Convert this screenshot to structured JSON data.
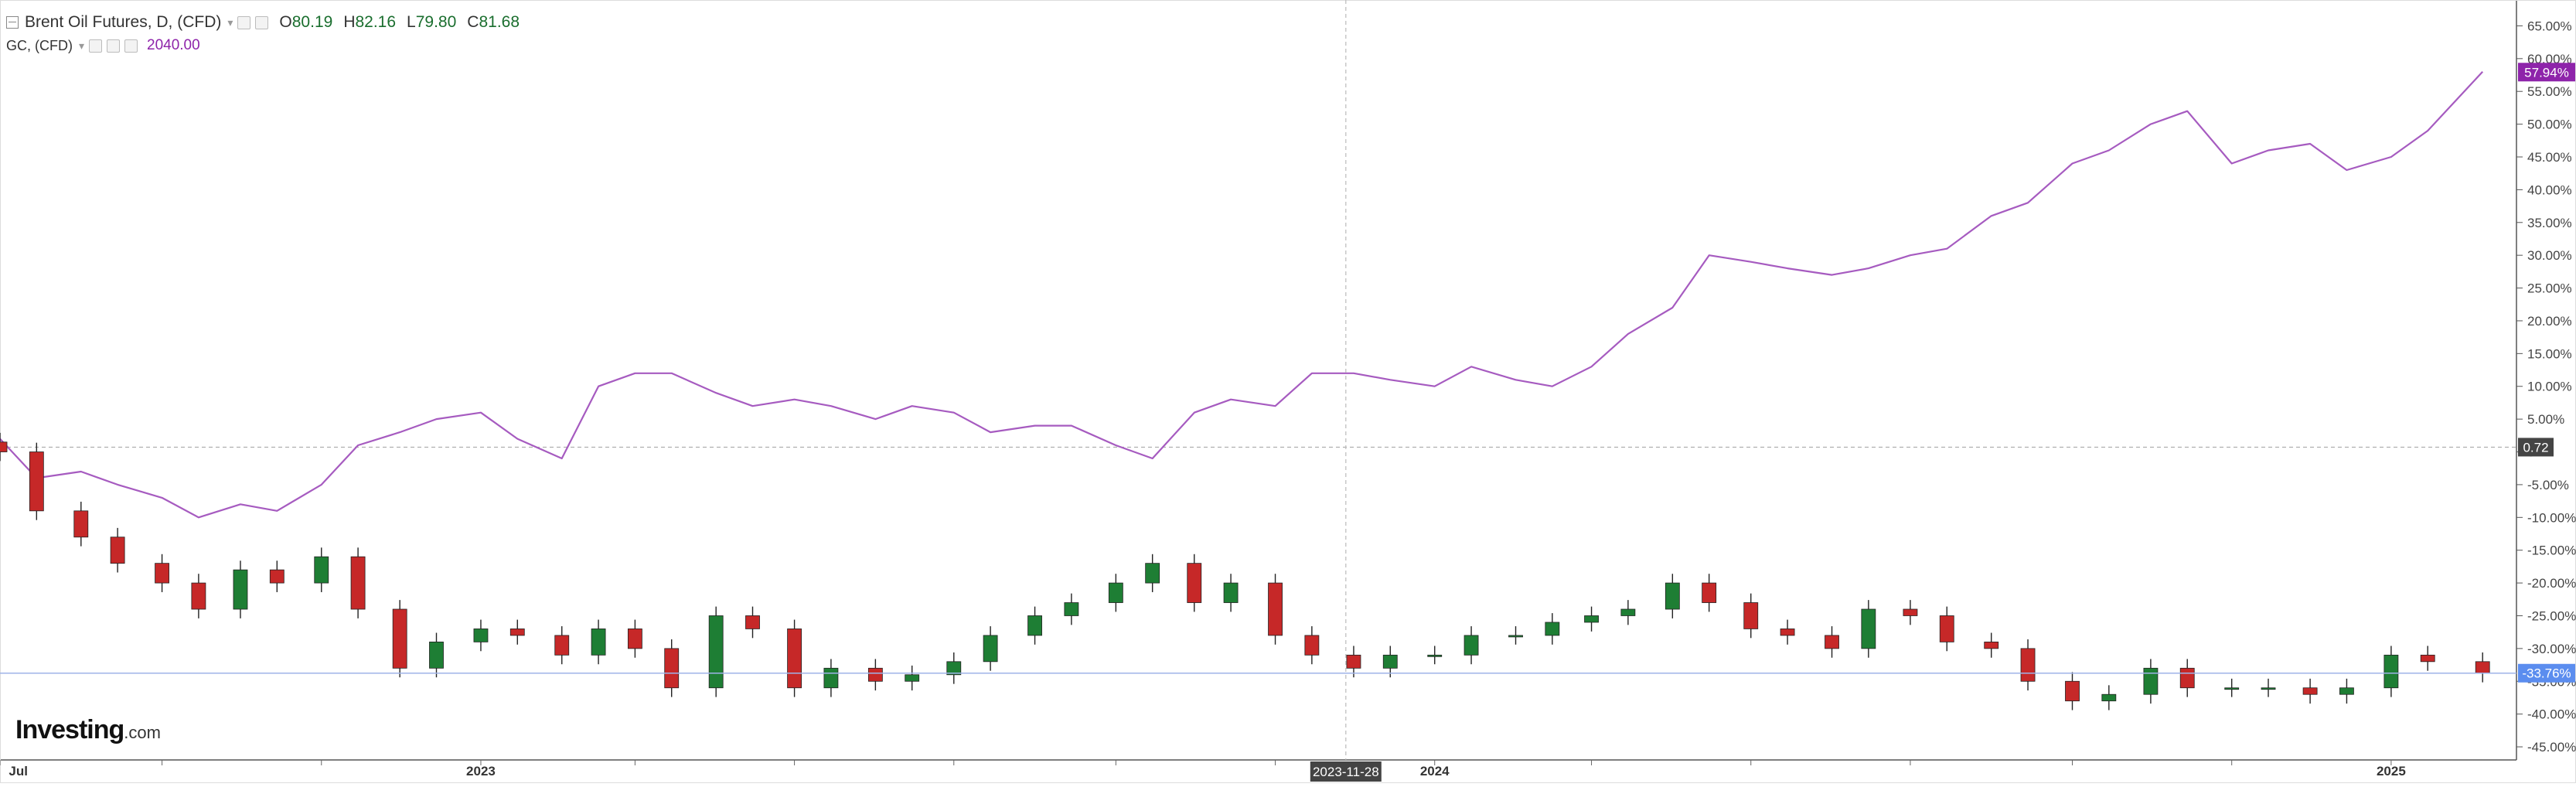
{
  "legend": {
    "primary_symbol": "Brent Oil Futures, D, (CFD)",
    "ohlc": [
      {
        "key": "O",
        "value": "80.19"
      },
      {
        "key": "H",
        "value": "82.16"
      },
      {
        "key": "L",
        "value": "79.80"
      },
      {
        "key": "C",
        "value": "81.68"
      }
    ],
    "secondary_symbol": "GC, (CFD)",
    "secondary_value": "2040.00",
    "secondary_color": "#8e24aa",
    "up_color": "#1a6e2e",
    "icons": [
      "settings-icon",
      "eye-icon",
      "close-icon"
    ]
  },
  "watermark": {
    "brand": "Investing",
    "suffix": ".com"
  },
  "crosshair": {
    "date_label": "2023-11-28",
    "value_label": "0.72"
  },
  "chart_data": {
    "type": "line",
    "title": "",
    "xlabel": "",
    "ylabel": "",
    "y_unit": "%",
    "ylim": [
      -47,
      68
    ],
    "xlim": [
      "2022-07-01",
      "2025-02-15"
    ],
    "x_tick_labels": [
      "Jul",
      "2023",
      "2023-11-28",
      "2024",
      "2025"
    ],
    "y_tick_labels": [
      "65.00%",
      "60.00%",
      "55.00%",
      "50.00%",
      "45.00%",
      "40.00%",
      "35.00%",
      "30.00%",
      "25.00%",
      "20.00%",
      "15.00%",
      "10.00%",
      "5.00%",
      "0",
      "-5.00%",
      "-10.00%",
      "-15.00%",
      "-20.00%",
      "-25.00%",
      "-30.00%",
      "-35.00%",
      "-40.00%",
      "-45.00%"
    ],
    "y_ticks": [
      65,
      60,
      55,
      50,
      45,
      40,
      35,
      30,
      25,
      20,
      15,
      10,
      5,
      0,
      -5,
      -10,
      -15,
      -20,
      -25,
      -30,
      -35,
      -40,
      -45
    ],
    "grid": false,
    "last_value_labels": [
      {
        "series": "GC, (CFD)",
        "text": "57.94%",
        "value": 57.94,
        "color": "#8e24aa"
      },
      {
        "series": "Brent Oil Futures, D, (CFD)",
        "text": "-33.76%",
        "value": -33.76,
        "color": "#5b8def"
      }
    ],
    "series": [
      {
        "name": "GC, (CFD)",
        "style": "line",
        "color": "#a65bc0",
        "x": [
          "2022-07-01",
          "2022-07-15",
          "2022-08-01",
          "2022-08-15",
          "2022-09-01",
          "2022-09-15",
          "2022-10-01",
          "2022-10-15",
          "2022-11-01",
          "2022-11-15",
          "2022-12-01",
          "2022-12-15",
          "2023-01-01",
          "2023-01-15",
          "2023-02-01",
          "2023-02-15",
          "2023-03-01",
          "2023-03-15",
          "2023-04-01",
          "2023-04-15",
          "2023-05-01",
          "2023-05-15",
          "2023-06-01",
          "2023-06-15",
          "2023-07-01",
          "2023-07-15",
          "2023-08-01",
          "2023-08-15",
          "2023-09-01",
          "2023-09-15",
          "2023-10-01",
          "2023-10-15",
          "2023-11-01",
          "2023-11-15",
          "2023-12-01",
          "2023-12-15",
          "2024-01-01",
          "2024-01-15",
          "2024-02-01",
          "2024-02-15",
          "2024-03-01",
          "2024-03-15",
          "2024-04-01",
          "2024-04-15",
          "2024-05-01",
          "2024-05-15",
          "2024-06-01",
          "2024-06-15",
          "2024-07-01",
          "2024-07-15",
          "2024-08-01",
          "2024-08-15",
          "2024-09-01",
          "2024-09-15",
          "2024-10-01",
          "2024-10-15",
          "2024-11-01",
          "2024-11-15",
          "2024-12-01",
          "2024-12-15",
          "2025-01-01",
          "2025-01-15",
          "2025-02-05"
        ],
        "values": [
          2,
          -4,
          -3,
          -5,
          -7,
          -10,
          -8,
          -9,
          -5,
          1,
          3,
          5,
          6,
          2,
          -1,
          10,
          12,
          12,
          9,
          7,
          8,
          7,
          5,
          7,
          6,
          3,
          4,
          4,
          1,
          -1,
          6,
          8,
          7,
          12,
          12,
          11,
          10,
          13,
          11,
          10,
          13,
          18,
          22,
          30,
          29,
          28,
          27,
          28,
          30,
          31,
          36,
          38,
          44,
          46,
          50,
          52,
          44,
          46,
          47,
          43,
          45,
          49,
          58
        ]
      },
      {
        "name": "Brent Oil Futures, D, (CFD)",
        "style": "candlestick",
        "up_color": "#1e7e34",
        "down_color": "#c62828",
        "x": [
          "2022-07-01",
          "2022-07-15",
          "2022-08-01",
          "2022-08-15",
          "2022-09-01",
          "2022-09-15",
          "2022-10-01",
          "2022-10-15",
          "2022-11-01",
          "2022-11-15",
          "2022-12-01",
          "2022-12-15",
          "2023-01-01",
          "2023-01-15",
          "2023-02-01",
          "2023-02-15",
          "2023-03-01",
          "2023-03-15",
          "2023-04-01",
          "2023-04-15",
          "2023-05-01",
          "2023-05-15",
          "2023-06-01",
          "2023-06-15",
          "2023-07-01",
          "2023-07-15",
          "2023-08-01",
          "2023-08-15",
          "2023-09-01",
          "2023-09-15",
          "2023-10-01",
          "2023-10-15",
          "2023-11-01",
          "2023-11-15",
          "2023-12-01",
          "2023-12-15",
          "2024-01-01",
          "2024-01-15",
          "2024-02-01",
          "2024-02-15",
          "2024-03-01",
          "2024-03-15",
          "2024-04-01",
          "2024-04-15",
          "2024-05-01",
          "2024-05-15",
          "2024-06-01",
          "2024-06-15",
          "2024-07-01",
          "2024-07-15",
          "2024-08-01",
          "2024-08-15",
          "2024-09-01",
          "2024-09-15",
          "2024-10-01",
          "2024-10-15",
          "2024-11-01",
          "2024-11-15",
          "2024-12-01",
          "2024-12-15",
          "2025-01-01",
          "2025-01-15",
          "2025-02-05"
        ],
        "values": [
          0,
          -9,
          -13,
          -17,
          -20,
          -24,
          -18,
          -20,
          -16,
          -24,
          -33,
          -29,
          -27,
          -28,
          -31,
          -27,
          -30,
          -36,
          -25,
          -27,
          -36,
          -33,
          -35,
          -34,
          -32,
          -28,
          -25,
          -23,
          -20,
          -17,
          -23,
          -20,
          -28,
          -31,
          -33,
          -31,
          -31,
          -28,
          -28,
          -26,
          -25,
          -24,
          -20,
          -23,
          -27,
          -28,
          -30,
          -24,
          -25,
          -29,
          -30,
          -35,
          -38,
          -37,
          -33,
          -36,
          -36,
          -36,
          -37,
          -36,
          -31,
          -32,
          -33.76
        ]
      }
    ]
  }
}
